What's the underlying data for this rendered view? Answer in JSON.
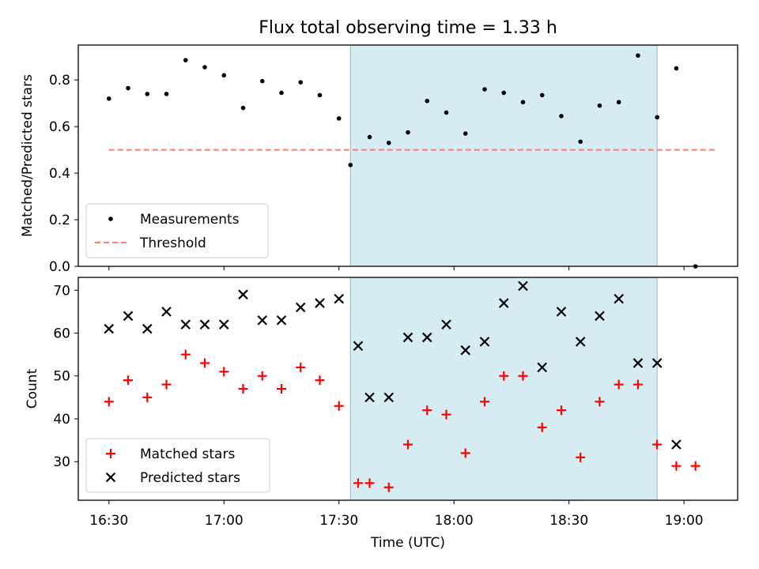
{
  "chart_data": [
    {
      "type": "scatter",
      "title": "Flux total observing time = 1.33 h",
      "xlabel": "",
      "ylabel": "Matched/Predicted stars",
      "xlim_minutes_utc": [
        982,
        1154
      ],
      "ylim": [
        0,
        0.95
      ],
      "yticks": [
        0.0,
        0.2,
        0.4,
        0.6,
        0.8
      ],
      "ytick_labels": [
        "0.0",
        "0.2",
        "0.4",
        "0.6",
        "0.8"
      ],
      "shaded_region_minutes_utc": [
        1053,
        1133
      ],
      "threshold": {
        "label": "Threshold",
        "value": 0.5,
        "x_range_minutes_utc": [
          990,
          1148
        ],
        "color": "#ff7b7b"
      },
      "series": [
        {
          "name": "Measurements",
          "color": "#000000",
          "x_minutes_utc": [
            990,
            995,
            1000,
            1005,
            1010,
            1015,
            1020,
            1025,
            1030,
            1035,
            1040,
            1045,
            1050,
            1053,
            1058,
            1063,
            1068,
            1073,
            1078,
            1083,
            1088,
            1093,
            1098,
            1103,
            1108,
            1113,
            1118,
            1123,
            1128,
            1133,
            1138
          ],
          "values": [
            0.72,
            0.765,
            0.74,
            0.74,
            0.885,
            0.855,
            0.82,
            0.68,
            0.795,
            0.745,
            0.79,
            0.735,
            0.635,
            0.435,
            0.555,
            0.53,
            0.575,
            0.71,
            0.66,
            0.57,
            0.76,
            0.745,
            0.705,
            0.735,
            0.645,
            0.535,
            0.69,
            0.705,
            0.905,
            0.64,
            0.85
          ]
        }
      ],
      "extra_points": [
        {
          "x_minutes_utc": 1143,
          "value": 0.0
        }
      ],
      "legend": [
        "Measurements",
        "Threshold"
      ],
      "legend_position": "lower-left"
    },
    {
      "type": "scatter",
      "title": "",
      "xlabel": "Time (UTC)",
      "ylabel": "Count",
      "xlim_minutes_utc": [
        982,
        1154
      ],
      "ylim": [
        21,
        73
      ],
      "yticks": [
        30,
        40,
        50,
        60,
        70
      ],
      "ytick_labels": [
        "30",
        "40",
        "50",
        "60",
        "70"
      ],
      "xticks_minutes_utc": [
        990,
        1020,
        1050,
        1080,
        1110,
        1140
      ],
      "xtick_labels": [
        "16:30",
        "17:00",
        "17:30",
        "18:00",
        "18:30",
        "19:00"
      ],
      "shaded_region_minutes_utc": [
        1053,
        1133
      ],
      "series": [
        {
          "name": "Matched stars",
          "marker": "plus",
          "color": "#ff0000",
          "x_minutes_utc": [
            990,
            995,
            1000,
            1005,
            1010,
            1015,
            1020,
            1025,
            1030,
            1035,
            1040,
            1045,
            1050,
            1055,
            1058,
            1063,
            1068,
            1073,
            1078,
            1083,
            1088,
            1093,
            1098,
            1103,
            1108,
            1113,
            1118,
            1123,
            1128,
            1133,
            1138,
            1143
          ],
          "values": [
            44,
            49,
            45,
            48,
            55,
            53,
            51,
            47,
            50,
            47,
            52,
            49,
            43,
            25,
            25,
            24,
            34,
            42,
            41,
            32,
            44,
            50,
            50,
            38,
            42,
            31,
            44,
            48,
            48,
            34,
            29,
            29
          ]
        },
        {
          "name": "Predicted stars",
          "marker": "x",
          "color": "#000000",
          "x_minutes_utc": [
            990,
            995,
            1000,
            1005,
            1010,
            1015,
            1020,
            1025,
            1030,
            1035,
            1040,
            1045,
            1050,
            1055,
            1058,
            1063,
            1068,
            1073,
            1078,
            1083,
            1088,
            1093,
            1098,
            1103,
            1108,
            1113,
            1118,
            1123,
            1128,
            1133,
            1138
          ],
          "values": [
            61,
            64,
            61,
            65,
            62,
            62,
            62,
            69,
            63,
            63,
            66,
            67,
            68,
            57,
            45,
            45,
            59,
            59,
            62,
            56,
            58,
            67,
            71,
            52,
            65,
            58,
            64,
            68,
            53,
            53,
            34
          ]
        }
      ],
      "legend": [
        "Matched stars",
        "Predicted stars"
      ],
      "legend_position": "lower-left"
    }
  ]
}
